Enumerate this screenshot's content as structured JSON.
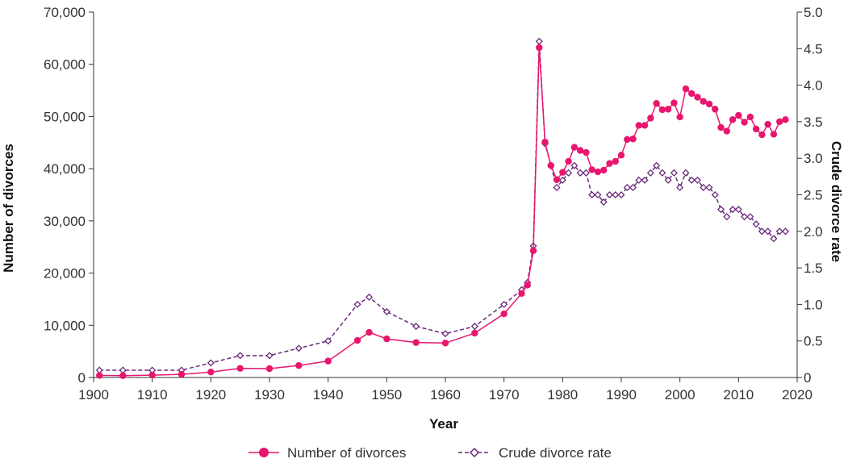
{
  "chart_data": {
    "type": "line",
    "xlabel": "Year",
    "ylabel_left": "Number of divorces",
    "ylabel_right": "Crude divorce rate",
    "xlim": [
      1900,
      2020
    ],
    "ylim_left": [
      0,
      70000
    ],
    "ylim_right": [
      0,
      5.0
    ],
    "x_ticks": [
      1900,
      1910,
      1920,
      1930,
      1940,
      1950,
      1960,
      1970,
      1980,
      1990,
      2000,
      2010,
      2020
    ],
    "x_tick_labels": [
      "1900",
      "1910",
      "1920",
      "1930",
      "1940",
      "1950",
      "1960",
      "1970",
      "1980",
      "1990",
      "2000",
      "2010",
      "2020"
    ],
    "y_left_ticks": [
      0,
      10000,
      20000,
      30000,
      40000,
      50000,
      60000,
      70000
    ],
    "y_left_tick_labels": [
      "0",
      "10,000",
      "20,000",
      "30,000",
      "40,000",
      "50,000",
      "60,000",
      "70,000"
    ],
    "y_right_ticks": [
      0,
      0.5,
      1.0,
      1.5,
      2.0,
      2.5,
      3.0,
      3.5,
      4.0,
      4.5,
      5.0
    ],
    "y_right_tick_labels": [
      "0",
      "0.5",
      "1.0",
      "1.5",
      "2.0",
      "2.5",
      "3.0",
      "3.5",
      "4.0",
      "4.5",
      "5.0"
    ],
    "grid": false,
    "legend_position": "bottom-center",
    "series": [
      {
        "name": "Number of divorces",
        "axis": "left",
        "color": "#e8166e",
        "line_style": "solid",
        "marker": "filled-circle",
        "points": [
          [
            1901,
            400
          ],
          [
            1905,
            350
          ],
          [
            1910,
            450
          ],
          [
            1915,
            600
          ],
          [
            1920,
            1050
          ],
          [
            1925,
            1750
          ],
          [
            1930,
            1700
          ],
          [
            1935,
            2300
          ],
          [
            1940,
            3150
          ],
          [
            1945,
            7100
          ],
          [
            1947,
            8650
          ],
          [
            1950,
            7400
          ],
          [
            1955,
            6700
          ],
          [
            1960,
            6600
          ],
          [
            1965,
            8500
          ],
          [
            1970,
            12200
          ],
          [
            1973,
            16100
          ],
          [
            1974,
            17700
          ],
          [
            1975,
            24300
          ],
          [
            1976,
            63200
          ],
          [
            1977,
            45100
          ],
          [
            1978,
            40600
          ],
          [
            1979,
            37900
          ],
          [
            1980,
            39300
          ],
          [
            1981,
            41400
          ],
          [
            1982,
            44100
          ],
          [
            1983,
            43500
          ],
          [
            1984,
            43100
          ],
          [
            1985,
            39800
          ],
          [
            1986,
            39400
          ],
          [
            1987,
            39700
          ],
          [
            1988,
            41000
          ],
          [
            1989,
            41400
          ],
          [
            1990,
            42600
          ],
          [
            1991,
            45600
          ],
          [
            1992,
            45700
          ],
          [
            1993,
            48300
          ],
          [
            1994,
            48300
          ],
          [
            1995,
            49700
          ],
          [
            1996,
            52500
          ],
          [
            1997,
            51300
          ],
          [
            1998,
            51400
          ],
          [
            1999,
            52600
          ],
          [
            2000,
            49900
          ],
          [
            2001,
            55300
          ],
          [
            2002,
            54400
          ],
          [
            2003,
            53700
          ],
          [
            2004,
            52900
          ],
          [
            2005,
            52400
          ],
          [
            2006,
            51400
          ],
          [
            2007,
            47900
          ],
          [
            2008,
            47200
          ],
          [
            2009,
            49400
          ],
          [
            2010,
            50200
          ],
          [
            2011,
            48900
          ],
          [
            2012,
            49900
          ],
          [
            2013,
            47600
          ],
          [
            2014,
            46500
          ],
          [
            2015,
            48500
          ],
          [
            2016,
            46600
          ],
          [
            2017,
            49000
          ],
          [
            2018,
            49400
          ]
        ]
      },
      {
        "name": "Crude divorce rate",
        "axis": "right",
        "color": "#6a2a7a",
        "line_style": "dashed",
        "marker": "open-diamond",
        "points": [
          [
            1901,
            0.1
          ],
          [
            1905,
            0.1
          ],
          [
            1910,
            0.1
          ],
          [
            1915,
            0.1
          ],
          [
            1920,
            0.2
          ],
          [
            1925,
            0.3
          ],
          [
            1930,
            0.3
          ],
          [
            1935,
            0.4
          ],
          [
            1940,
            0.5
          ],
          [
            1945,
            1.0
          ],
          [
            1947,
            1.1
          ],
          [
            1950,
            0.9
          ],
          [
            1955,
            0.7
          ],
          [
            1960,
            0.6
          ],
          [
            1965,
            0.7
          ],
          [
            1970,
            1.0
          ],
          [
            1973,
            1.2
          ],
          [
            1974,
            1.3
          ],
          [
            1975,
            1.8
          ],
          [
            1976,
            4.6
          ],
          [
            1977,
            3.2
          ],
          [
            1978,
            2.9
          ],
          [
            1979,
            2.6
          ],
          [
            1980,
            2.7
          ],
          [
            1981,
            2.8
          ],
          [
            1982,
            2.9
          ],
          [
            1983,
            2.8
          ],
          [
            1984,
            2.8
          ],
          [
            1985,
            2.5
          ],
          [
            1986,
            2.5
          ],
          [
            1987,
            2.4
          ],
          [
            1988,
            2.5
          ],
          [
            1989,
            2.5
          ],
          [
            1990,
            2.5
          ],
          [
            1991,
            2.6
          ],
          [
            1992,
            2.6
          ],
          [
            1993,
            2.7
          ],
          [
            1994,
            2.7
          ],
          [
            1995,
            2.8
          ],
          [
            1996,
            2.9
          ],
          [
            1997,
            2.8
          ],
          [
            1998,
            2.7
          ],
          [
            1999,
            2.8
          ],
          [
            2000,
            2.6
          ],
          [
            2001,
            2.8
          ],
          [
            2002,
            2.7
          ],
          [
            2003,
            2.7
          ],
          [
            2004,
            2.6
          ],
          [
            2005,
            2.6
          ],
          [
            2006,
            2.5
          ],
          [
            2007,
            2.3
          ],
          [
            2008,
            2.2
          ],
          [
            2009,
            2.3
          ],
          [
            2010,
            2.3
          ],
          [
            2011,
            2.2
          ],
          [
            2012,
            2.2
          ],
          [
            2013,
            2.1
          ],
          [
            2014,
            2.0
          ],
          [
            2015,
            2.0
          ],
          [
            2016,
            1.9
          ],
          [
            2017,
            2.0
          ],
          [
            2018,
            2.0
          ]
        ]
      }
    ]
  }
}
